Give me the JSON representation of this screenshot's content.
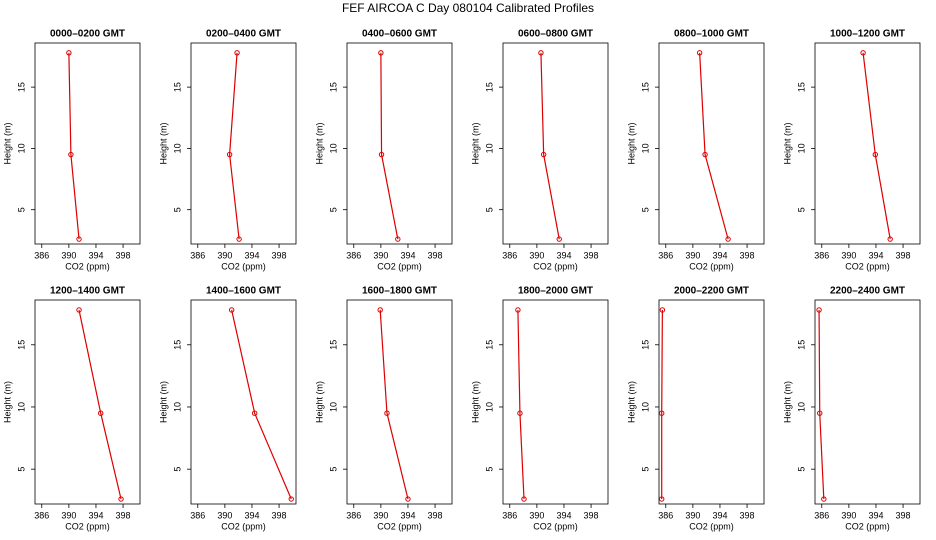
{
  "title": "FEF AIRCOA C  Day 080104  Calibrated Profiles",
  "chart_data": [
    {
      "type": "line",
      "title": "0000–0200 GMT",
      "xlabel": "CO2 (ppm)",
      "ylabel": "Height (m)",
      "color": "#dd0000",
      "x": [
        390.0,
        390.3,
        391.5
      ],
      "values": [
        17.8,
        9.5,
        2.6
      ],
      "xlim": [
        385,
        400.5
      ],
      "ylim": [
        2.2,
        18.6
      ],
      "xticks": [
        386,
        390,
        394,
        398
      ],
      "yticks": [
        5,
        10,
        15
      ]
    },
    {
      "type": "line",
      "title": "0200–0400 GMT",
      "xlabel": "CO2 (ppm)",
      "ylabel": "Height (m)",
      "color": "#dd0000",
      "x": [
        391.8,
        390.7,
        392.1
      ],
      "values": [
        17.8,
        9.5,
        2.6
      ],
      "xlim": [
        385,
        400.5
      ],
      "ylim": [
        2.2,
        18.6
      ],
      "xticks": [
        386,
        390,
        394,
        398
      ],
      "yticks": [
        5,
        10,
        15
      ]
    },
    {
      "type": "line",
      "title": "0400–0600 GMT",
      "xlabel": "CO2 (ppm)",
      "ylabel": "Height (m)",
      "color": "#dd0000",
      "x": [
        390.0,
        390.1,
        392.5
      ],
      "values": [
        17.8,
        9.5,
        2.6
      ],
      "xlim": [
        385,
        400.5
      ],
      "ylim": [
        2.2,
        18.6
      ],
      "xticks": [
        386,
        390,
        394,
        398
      ],
      "yticks": [
        5,
        10,
        15
      ]
    },
    {
      "type": "line",
      "title": "0600–0800 GMT",
      "xlabel": "CO2 (ppm)",
      "ylabel": "Height (m)",
      "color": "#dd0000",
      "x": [
        390.6,
        391.0,
        393.3
      ],
      "values": [
        17.8,
        9.5,
        2.6
      ],
      "xlim": [
        385,
        400.5
      ],
      "ylim": [
        2.2,
        18.6
      ],
      "xticks": [
        386,
        390,
        394,
        398
      ],
      "yticks": [
        5,
        10,
        15
      ]
    },
    {
      "type": "line",
      "title": "0800–1000 GMT",
      "xlabel": "CO2 (ppm)",
      "ylabel": "Height (m)",
      "color": "#dd0000",
      "x": [
        391.0,
        391.8,
        395.2
      ],
      "values": [
        17.8,
        9.5,
        2.6
      ],
      "xlim": [
        385,
        400.5
      ],
      "ylim": [
        2.2,
        18.6
      ],
      "xticks": [
        386,
        390,
        394,
        398
      ],
      "yticks": [
        5,
        10,
        15
      ]
    },
    {
      "type": "line",
      "title": "1000–1200 GMT",
      "xlabel": "CO2 (ppm)",
      "ylabel": "Height (m)",
      "color": "#dd0000",
      "x": [
        392.1,
        393.9,
        396.1
      ],
      "values": [
        17.8,
        9.5,
        2.6
      ],
      "xlim": [
        385,
        400.5
      ],
      "ylim": [
        2.2,
        18.6
      ],
      "xticks": [
        386,
        390,
        394,
        398
      ],
      "yticks": [
        5,
        10,
        15
      ]
    },
    {
      "type": "line",
      "title": "1200–1400 GMT",
      "xlabel": "CO2 (ppm)",
      "ylabel": "Height (m)",
      "color": "#dd0000",
      "x": [
        391.5,
        394.7,
        397.7
      ],
      "values": [
        17.8,
        9.5,
        2.6
      ],
      "xlim": [
        385,
        400.5
      ],
      "ylim": [
        2.2,
        18.6
      ],
      "xticks": [
        386,
        390,
        394,
        398
      ],
      "yticks": [
        5,
        10,
        15
      ]
    },
    {
      "type": "line",
      "title": "1400–1600 GMT",
      "xlabel": "CO2 (ppm)",
      "ylabel": "Height (m)",
      "color": "#dd0000",
      "x": [
        391.0,
        394.4,
        399.8
      ],
      "values": [
        17.8,
        9.5,
        2.6
      ],
      "xlim": [
        385,
        400.5
      ],
      "ylim": [
        2.2,
        18.6
      ],
      "xticks": [
        386,
        390,
        394,
        398
      ],
      "yticks": [
        5,
        10,
        15
      ]
    },
    {
      "type": "line",
      "title": "1600–1800 GMT",
      "xlabel": "CO2 (ppm)",
      "ylabel": "Height (m)",
      "color": "#dd0000",
      "x": [
        389.9,
        390.9,
        394.0
      ],
      "values": [
        17.8,
        9.5,
        2.6
      ],
      "xlim": [
        385,
        400.5
      ],
      "ylim": [
        2.2,
        18.6
      ],
      "xticks": [
        386,
        390,
        394,
        398
      ],
      "yticks": [
        5,
        10,
        15
      ]
    },
    {
      "type": "line",
      "title": "1800–2000 GMT",
      "xlabel": "CO2 (ppm)",
      "ylabel": "Height (m)",
      "color": "#dd0000",
      "x": [
        387.2,
        387.5,
        388.1
      ],
      "values": [
        17.8,
        9.5,
        2.6
      ],
      "xlim": [
        385,
        400.5
      ],
      "ylim": [
        2.2,
        18.6
      ],
      "xticks": [
        386,
        390,
        394,
        398
      ],
      "yticks": [
        5,
        10,
        15
      ]
    },
    {
      "type": "line",
      "title": "2000–2200 GMT",
      "xlabel": "CO2 (ppm)",
      "ylabel": "Height (m)",
      "color": "#dd0000",
      "x": [
        385.5,
        385.4,
        385.4
      ],
      "values": [
        17.8,
        9.5,
        2.6
      ],
      "xlim": [
        385,
        400.5
      ],
      "ylim": [
        2.2,
        18.6
      ],
      "xticks": [
        386,
        390,
        394,
        398
      ],
      "yticks": [
        5,
        10,
        15
      ]
    },
    {
      "type": "line",
      "title": "2200–2400 GMT",
      "xlabel": "CO2 (ppm)",
      "ylabel": "Height (m)",
      "color": "#dd0000",
      "x": [
        385.6,
        385.7,
        386.3
      ],
      "values": [
        17.8,
        9.5,
        2.6
      ],
      "xlim": [
        385,
        400.5
      ],
      "ylim": [
        2.2,
        18.6
      ],
      "xticks": [
        386,
        390,
        394,
        398
      ],
      "yticks": [
        5,
        10,
        15
      ]
    }
  ]
}
